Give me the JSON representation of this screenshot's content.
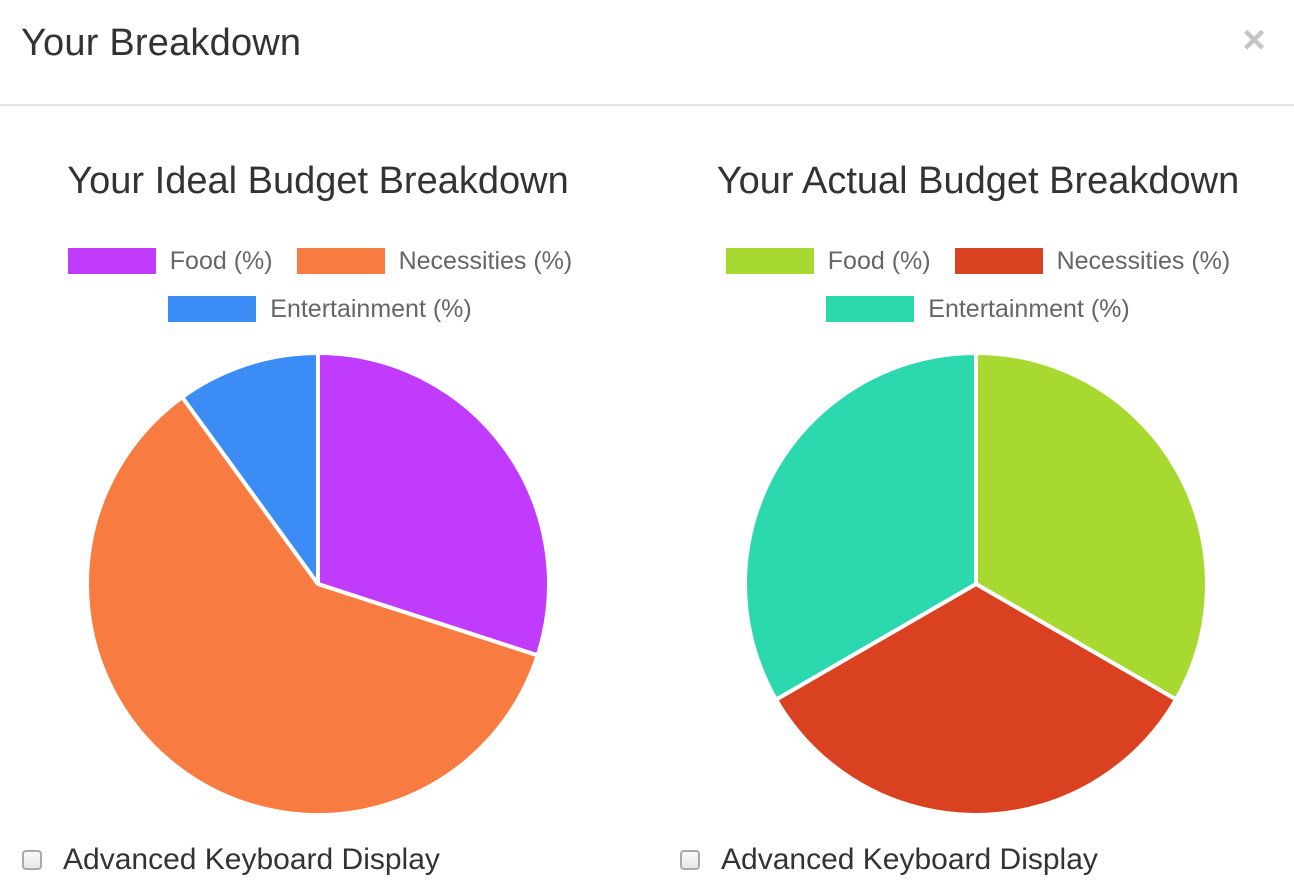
{
  "modal": {
    "title": "Your Breakdown",
    "close_glyph": "×",
    "close_icon": "close-icon"
  },
  "chart_data": [
    {
      "type": "pie",
      "title": "Your Ideal Budget Breakdown",
      "categories": [
        "Food (%)",
        "Necessities (%)",
        "Entertainment (%)"
      ],
      "values": [
        30,
        60,
        10
      ],
      "colors": [
        "#c03bfc",
        "#f87c42",
        "#3b8cf5"
      ],
      "legend_position": "top"
    },
    {
      "type": "pie",
      "title": "Your Actual Budget Breakdown",
      "categories": [
        "Food (%)",
        "Necessities (%)",
        "Entertainment (%)"
      ],
      "values": [
        33.33,
        33.33,
        33.34
      ],
      "colors": [
        "#a8d930",
        "#da4120",
        "#2cd8ad"
      ],
      "legend_position": "top"
    }
  ],
  "toggles": [
    {
      "label": "Advanced Keyboard Display",
      "checked": false
    },
    {
      "label": "Advanced Keyboard Display",
      "checked": false
    }
  ]
}
